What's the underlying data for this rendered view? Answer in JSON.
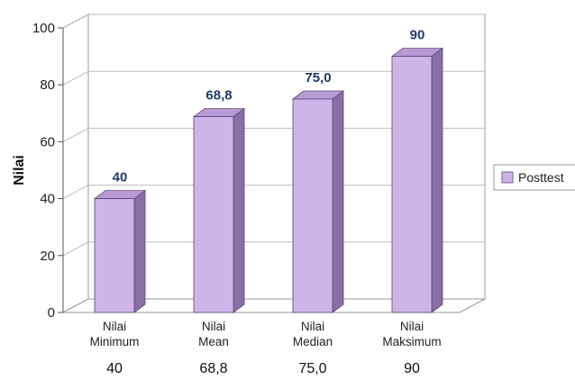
{
  "chart_data": {
    "type": "bar",
    "categories": [
      [
        "Nilai",
        "Minimum"
      ],
      [
        "Nilai",
        "Mean"
      ],
      [
        "Nilai",
        "Median"
      ],
      [
        "Nilai",
        "Maksimum"
      ]
    ],
    "series": [
      {
        "name": "Posttest",
        "values": [
          40,
          68.8,
          75.0,
          90
        ]
      }
    ],
    "data_labels": [
      "40",
      "68,8",
      "75,0",
      "90"
    ],
    "table_values": [
      "40",
      "68,8",
      "75,0",
      "90"
    ],
    "ylabel": "Nilai",
    "xlabel": "",
    "ylim": [
      0,
      100
    ],
    "yticks": [
      0,
      20,
      40,
      60,
      80,
      100
    ],
    "grid": true,
    "legend": "right",
    "colors": {
      "bar_front": "#cdb5ea",
      "bar_side": "#8a6fa6",
      "bar_top": "#b79ad6",
      "data_label": "#1f3a6b",
      "grid": "#bdbdbd"
    }
  }
}
